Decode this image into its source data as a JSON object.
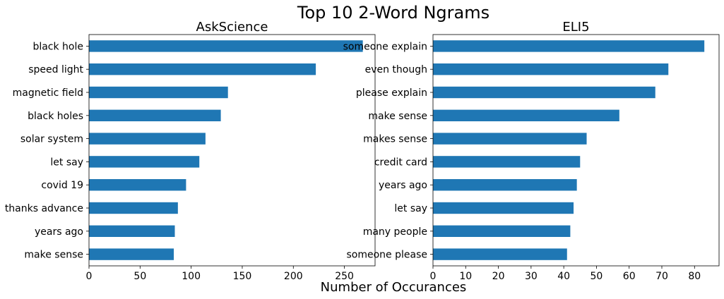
{
  "figure": {
    "title": "Top 10 2-Word Ngrams",
    "xlabel": "Number of Occurances"
  },
  "chart_data": [
    {
      "type": "bar",
      "orientation": "horizontal",
      "title": "AskScience",
      "categories": [
        "black hole",
        "speed light",
        "magnetic field",
        "black holes",
        "solar system",
        "let say",
        "covid 19",
        "thanks advance",
        "years ago",
        "make sense"
      ],
      "values": [
        268,
        222,
        136,
        129,
        114,
        108,
        95,
        87,
        84,
        83
      ],
      "xlim": [
        0,
        280
      ],
      "xticks": [
        0,
        50,
        100,
        150,
        200,
        250
      ],
      "color": "#1f77b4",
      "grid": false,
      "legend": "none"
    },
    {
      "type": "bar",
      "orientation": "horizontal",
      "title": "ELI5",
      "categories": [
        "someone explain",
        "even though",
        "please explain",
        "make sense",
        "makes sense",
        "credit card",
        "years ago",
        "let say",
        "many people",
        "someone please"
      ],
      "values": [
        83,
        72,
        68,
        57,
        47,
        45,
        44,
        43,
        42,
        41
      ],
      "xlim": [
        0,
        87.5
      ],
      "xticks": [
        0,
        10,
        20,
        30,
        40,
        50,
        60,
        70,
        80
      ],
      "color": "#1f77b4",
      "grid": false,
      "legend": "none"
    }
  ]
}
